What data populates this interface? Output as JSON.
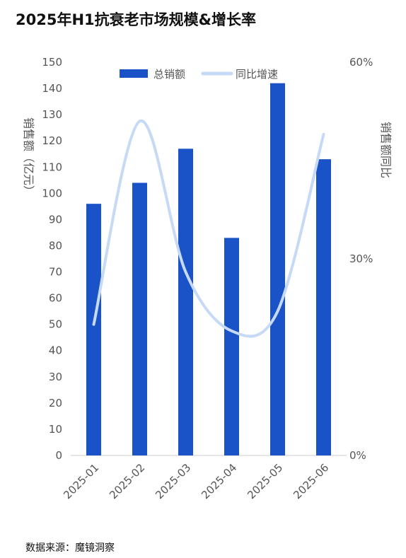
{
  "title": "2025年H1抗衰老市场规模&增长率",
  "source": "数据来源：魔镜洞察",
  "colors": {
    "bar": "#1a52c7",
    "line": "#c6d9f5",
    "text": "#555555",
    "axis": "#cccccc"
  },
  "chart_data": {
    "type": "bar",
    "categories": [
      "2025-01",
      "2025-02",
      "2025-03",
      "2025-04",
      "2025-05",
      "2025-06"
    ],
    "series": [
      {
        "name": "总销额",
        "type": "bar",
        "axis": "left",
        "values": [
          96,
          104,
          117,
          83,
          142,
          113
        ]
      },
      {
        "name": "同比增速",
        "type": "line",
        "smooth": true,
        "axis": "right",
        "values": [
          20,
          51,
          28,
          19,
          22,
          49
        ]
      }
    ],
    "ylabel": "销售额（亿元）",
    "y2label": "销售额同比",
    "ylim": [
      0,
      150
    ],
    "yticks": [
      0,
      10,
      20,
      30,
      40,
      50,
      60,
      70,
      80,
      90,
      100,
      110,
      120,
      130,
      140,
      150
    ],
    "y2lim": [
      0,
      60
    ],
    "y2ticks": [
      "0%",
      "30%",
      "60%"
    ],
    "y2tick_values": [
      0,
      30,
      60
    ],
    "grid": false,
    "legend": "top-center"
  }
}
